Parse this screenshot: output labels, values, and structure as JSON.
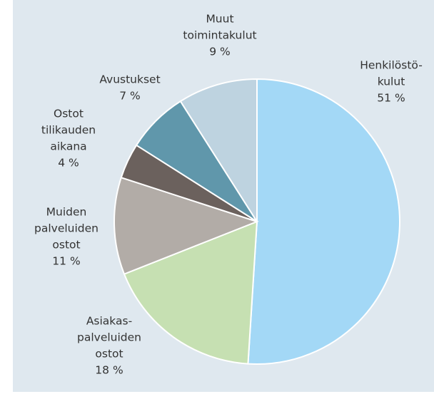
{
  "chart_data": {
    "type": "pie",
    "categories": [
      [
        "Henkilöstö-",
        "kulut"
      ],
      [
        "Asiakas-",
        "palveluiden",
        "ostot"
      ],
      [
        "Muiden",
        "palveluiden",
        "ostot"
      ],
      [
        "Ostot",
        "tilikauden",
        "aikana"
      ],
      [
        "Avustukset"
      ],
      [
        "Muut",
        "toimintakulut"
      ]
    ],
    "values": [
      51,
      18,
      11,
      4,
      7,
      9
    ],
    "value_labels": [
      "51 %",
      "18 %",
      "11 %",
      "4 %",
      "7 %",
      "9 %"
    ],
    "colors": [
      "#a3d8f6",
      "#c6e0b2",
      "#b2aca7",
      "#6b615d",
      "#6097ab",
      "#bed3e0"
    ]
  }
}
